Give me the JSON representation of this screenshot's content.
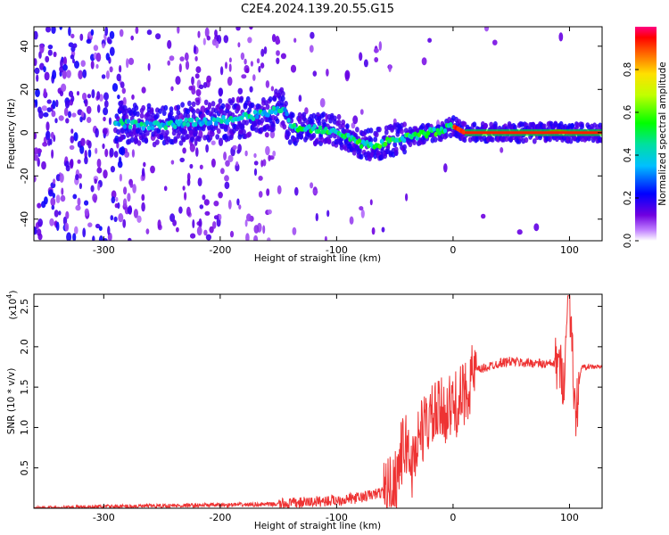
{
  "title": "C2E4.2024.139.20.55.G15",
  "chart_data": [
    {
      "type": "heatmap",
      "xlabel": "Height of straight line (km)",
      "ylabel": "Frequency (Hz)",
      "xlim": [
        -360,
        128
      ],
      "ylim": [
        -50,
        49
      ],
      "x_ticks": [
        -300,
        -200,
        -100,
        0,
        100
      ],
      "y_ticks": [
        -40,
        -20,
        0,
        20,
        40
      ],
      "colorbar": {
        "label": "Normalized spectral amplitude",
        "range": [
          0,
          1
        ],
        "ticks": [
          0.0,
          0.2,
          0.4,
          0.6,
          0.8
        ]
      },
      "ridge": {
        "x": [
          -280,
          -250,
          -220,
          -190,
          -160,
          -145,
          -140,
          -120,
          -100,
          -90,
          -80,
          -70,
          -60,
          -55,
          -50,
          -40,
          -30,
          -20,
          -10,
          0,
          10,
          50,
          80,
          90,
          100,
          128
        ],
        "frequency": [
          4,
          3,
          5,
          6,
          9,
          12,
          2,
          2,
          1,
          -2,
          -5,
          -6,
          -5,
          -4,
          -3,
          -2,
          -1,
          0,
          1,
          3,
          0,
          0,
          0,
          1,
          0,
          0
        ]
      }
    },
    {
      "type": "line",
      "xlabel": "Height of straight line (km)",
      "ylabel": "SNR (10 * v/v)",
      "y_multiplier": "(x10",
      "y_multiplier_exp": "4",
      "y_multiplier_close": ")",
      "xlim": [
        -360,
        128
      ],
      "ylim": [
        0,
        26500
      ],
      "x_ticks": [
        -300,
        -200,
        -100,
        0,
        100
      ],
      "y_ticks": [
        0.5,
        1.0,
        1.5,
        2.0,
        2.5
      ],
      "y_tick_labels": [
        "0.5",
        "1.0",
        "1.5",
        "2.0",
        "2.5"
      ],
      "series": [
        {
          "color": "#ee3333",
          "x": [
            -360,
            -300,
            -200,
            -150,
            -120,
            -100,
            -80,
            -60,
            -50,
            -45,
            -40,
            -35,
            -30,
            -20,
            -10,
            0,
            10,
            15,
            20,
            30,
            40,
            50,
            60,
            70,
            80,
            90,
            95,
            100,
            105,
            110,
            128
          ],
          "y": [
            0,
            200,
            400,
            500,
            800,
            1000,
            1300,
            2000,
            3000,
            6500,
            8000,
            5000,
            9000,
            11000,
            12000,
            12500,
            14000,
            16000,
            17000,
            17500,
            18000,
            18200,
            18000,
            18000,
            17800,
            18000,
            16000,
            26500,
            11000,
            17500,
            17500
          ]
        }
      ]
    }
  ]
}
